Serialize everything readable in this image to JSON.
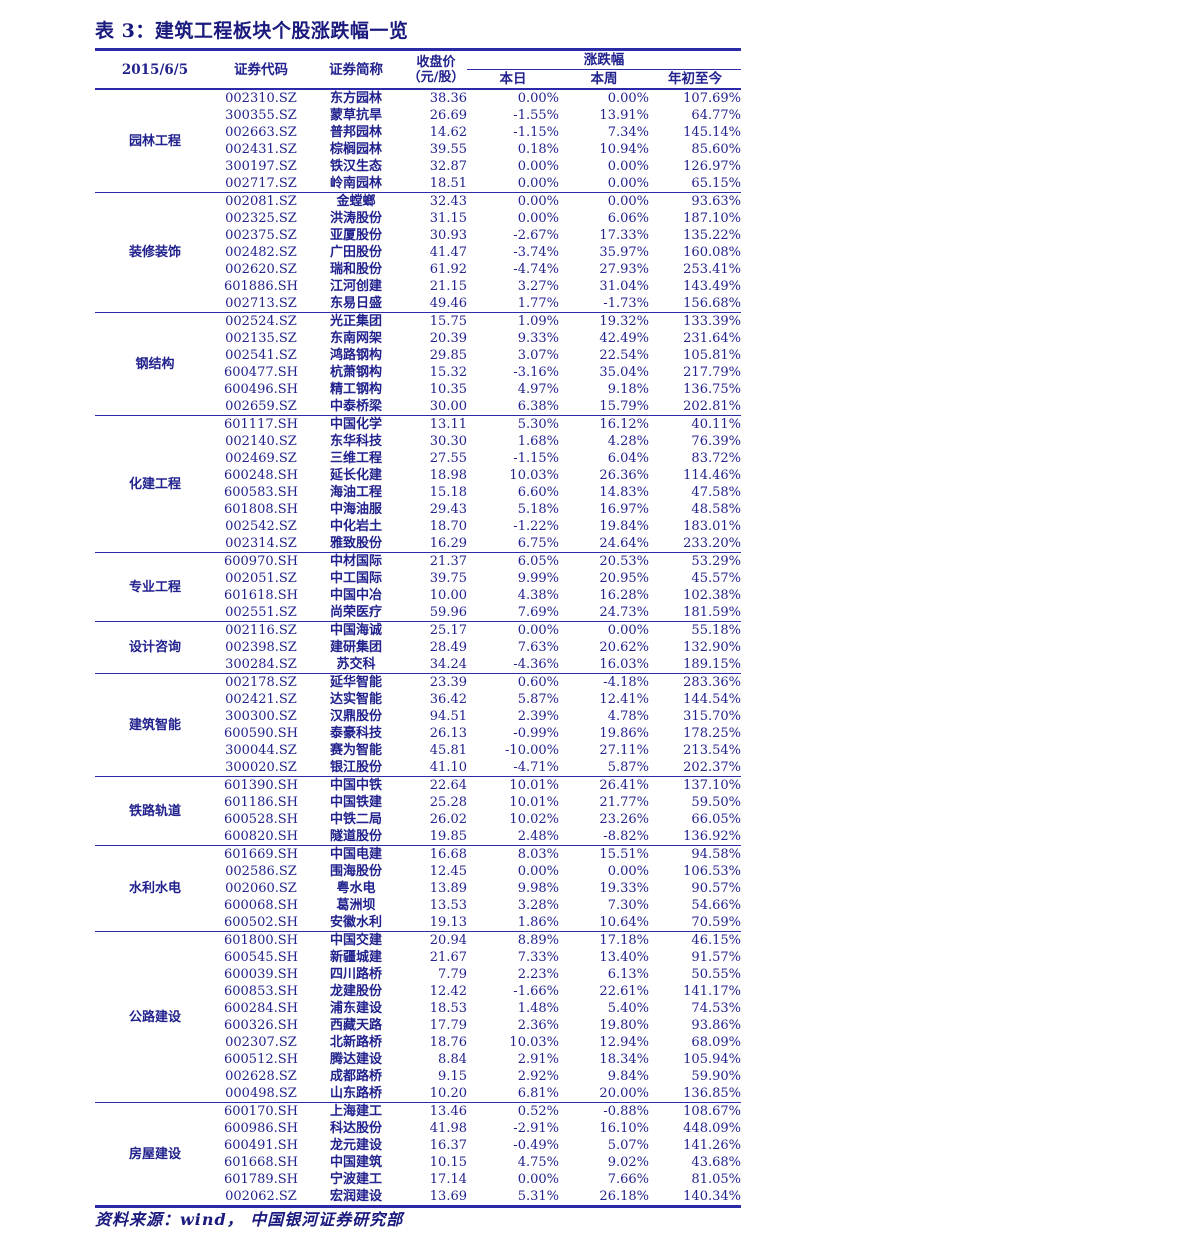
{
  "page": {
    "title": "表 3：建筑工程板块个股涨跌幅一览",
    "source_note": "资料来源：wind， 中国银河证券研究部"
  },
  "colors": {
    "ink": "#22228e",
    "title_ink": "#1a1a7e",
    "line": "#2b2baa",
    "background": "#ffffff"
  },
  "table": {
    "date_label": "2015/6/5",
    "headers": {
      "code": "证券代码",
      "name": "证券简称",
      "close": "收盘价（元/股）",
      "change": "涨跌幅",
      "today": "本日",
      "week": "本周",
      "ytd": "年初至今"
    },
    "groups": [
      {
        "category": "园林工程",
        "rows": [
          {
            "code": "002310.SZ",
            "name": "东方园林",
            "close": "38.36",
            "today": "0.00%",
            "week": "0.00%",
            "ytd": "107.69%"
          },
          {
            "code": "300355.SZ",
            "name": "蒙草抗旱",
            "close": "26.69",
            "today": "-1.55%",
            "week": "13.91%",
            "ytd": "64.77%"
          },
          {
            "code": "002663.SZ",
            "name": "普邦园林",
            "close": "14.62",
            "today": "-1.15%",
            "week": "7.34%",
            "ytd": "145.14%"
          },
          {
            "code": "002431.SZ",
            "name": "棕榈园林",
            "close": "39.55",
            "today": "0.18%",
            "week": "10.94%",
            "ytd": "85.60%"
          },
          {
            "code": "300197.SZ",
            "name": "铁汉生态",
            "close": "32.87",
            "today": "0.00%",
            "week": "0.00%",
            "ytd": "126.97%"
          },
          {
            "code": "002717.SZ",
            "name": "岭南园林",
            "close": "18.51",
            "today": "0.00%",
            "week": "0.00%",
            "ytd": "65.15%"
          }
        ]
      },
      {
        "category": "装修装饰",
        "rows": [
          {
            "code": "002081.SZ",
            "name": "金螳螂",
            "close": "32.43",
            "today": "0.00%",
            "week": "0.00%",
            "ytd": "93.63%"
          },
          {
            "code": "002325.SZ",
            "name": "洪涛股份",
            "close": "31.15",
            "today": "0.00%",
            "week": "6.06%",
            "ytd": "187.10%"
          },
          {
            "code": "002375.SZ",
            "name": "亚厦股份",
            "close": "30.93",
            "today": "-2.67%",
            "week": "17.33%",
            "ytd": "135.22%"
          },
          {
            "code": "002482.SZ",
            "name": "广田股份",
            "close": "41.47",
            "today": "-3.74%",
            "week": "35.97%",
            "ytd": "160.08%"
          },
          {
            "code": "002620.SZ",
            "name": "瑞和股份",
            "close": "61.92",
            "today": "-4.74%",
            "week": "27.93%",
            "ytd": "253.41%"
          },
          {
            "code": "601886.SH",
            "name": "江河创建",
            "close": "21.15",
            "today": "3.27%",
            "week": "31.04%",
            "ytd": "143.49%"
          },
          {
            "code": "002713.SZ",
            "name": "东易日盛",
            "close": "49.46",
            "today": "1.77%",
            "week": "-1.73%",
            "ytd": "156.68%"
          }
        ]
      },
      {
        "category": "钢结构",
        "rows": [
          {
            "code": "002524.SZ",
            "name": "光正集团",
            "close": "15.75",
            "today": "1.09%",
            "week": "19.32%",
            "ytd": "133.39%"
          },
          {
            "code": "002135.SZ",
            "name": "东南网架",
            "close": "20.39",
            "today": "9.33%",
            "week": "42.49%",
            "ytd": "231.64%"
          },
          {
            "code": "002541.SZ",
            "name": "鸿路钢构",
            "close": "29.85",
            "today": "3.07%",
            "week": "22.54%",
            "ytd": "105.81%"
          },
          {
            "code": "600477.SH",
            "name": "杭萧钢构",
            "close": "15.32",
            "today": "-3.16%",
            "week": "35.04%",
            "ytd": "217.79%"
          },
          {
            "code": "600496.SH",
            "name": "精工钢构",
            "close": "10.35",
            "today": "4.97%",
            "week": "9.18%",
            "ytd": "136.75%"
          },
          {
            "code": "002659.SZ",
            "name": "中泰桥梁",
            "close": "30.00",
            "today": "6.38%",
            "week": "15.79%",
            "ytd": "202.81%"
          }
        ]
      },
      {
        "category": "化建工程",
        "rows": [
          {
            "code": "601117.SH",
            "name": "中国化学",
            "close": "13.11",
            "today": "5.30%",
            "week": "16.12%",
            "ytd": "40.11%"
          },
          {
            "code": "002140.SZ",
            "name": "东华科技",
            "close": "30.30",
            "today": "1.68%",
            "week": "4.28%",
            "ytd": "76.39%"
          },
          {
            "code": "002469.SZ",
            "name": "三维工程",
            "close": "27.55",
            "today": "-1.15%",
            "week": "6.04%",
            "ytd": "83.72%"
          },
          {
            "code": "600248.SH",
            "name": "延长化建",
            "close": "18.98",
            "today": "10.03%",
            "week": "26.36%",
            "ytd": "114.46%"
          },
          {
            "code": "600583.SH",
            "name": "海油工程",
            "close": "15.18",
            "today": "6.60%",
            "week": "14.83%",
            "ytd": "47.58%"
          },
          {
            "code": "601808.SH",
            "name": "中海油服",
            "close": "29.43",
            "today": "5.18%",
            "week": "16.97%",
            "ytd": "48.58%"
          },
          {
            "code": "002542.SZ",
            "name": "中化岩土",
            "close": "18.70",
            "today": "-1.22%",
            "week": "19.84%",
            "ytd": "183.01%"
          },
          {
            "code": "002314.SZ",
            "name": "雅致股份",
            "close": "16.29",
            "today": "6.75%",
            "week": "24.64%",
            "ytd": "233.20%"
          }
        ]
      },
      {
        "category": "专业工程",
        "rows": [
          {
            "code": "600970.SH",
            "name": "中材国际",
            "close": "21.37",
            "today": "6.05%",
            "week": "20.53%",
            "ytd": "53.29%"
          },
          {
            "code": "002051.SZ",
            "name": "中工国际",
            "close": "39.75",
            "today": "9.99%",
            "week": "20.95%",
            "ytd": "45.57%"
          },
          {
            "code": "601618.SH",
            "name": "中国中冶",
            "close": "10.00",
            "today": "4.38%",
            "week": "16.28%",
            "ytd": "102.38%"
          },
          {
            "code": "002551.SZ",
            "name": "尚荣医疗",
            "close": "59.96",
            "today": "7.69%",
            "week": "24.73%",
            "ytd": "181.59%"
          }
        ]
      },
      {
        "category": "设计咨询",
        "rows": [
          {
            "code": "002116.SZ",
            "name": "中国海诚",
            "close": "25.17",
            "today": "0.00%",
            "week": "0.00%",
            "ytd": "55.18%"
          },
          {
            "code": "002398.SZ",
            "name": "建研集团",
            "close": "28.49",
            "today": "7.63%",
            "week": "20.62%",
            "ytd": "132.90%"
          },
          {
            "code": "300284.SZ",
            "name": "苏交科",
            "close": "34.24",
            "today": "-4.36%",
            "week": "16.03%",
            "ytd": "189.15%"
          }
        ]
      },
      {
        "category": "建筑智能",
        "rows": [
          {
            "code": "002178.SZ",
            "name": "延华智能",
            "close": "23.39",
            "today": "0.60%",
            "week": "-4.18%",
            "ytd": "283.36%"
          },
          {
            "code": "002421.SZ",
            "name": "达实智能",
            "close": "36.42",
            "today": "5.87%",
            "week": "12.41%",
            "ytd": "144.54%"
          },
          {
            "code": "300300.SZ",
            "name": "汉鼎股份",
            "close": "94.51",
            "today": "2.39%",
            "week": "4.78%",
            "ytd": "315.70%"
          },
          {
            "code": "600590.SH",
            "name": "泰豪科技",
            "close": "26.13",
            "today": "-0.99%",
            "week": "19.86%",
            "ytd": "178.25%"
          },
          {
            "code": "300044.SZ",
            "name": "赛为智能",
            "close": "45.81",
            "today": "-10.00%",
            "week": "27.11%",
            "ytd": "213.54%"
          },
          {
            "code": "300020.SZ",
            "name": "银江股份",
            "close": "41.10",
            "today": "-4.71%",
            "week": "5.87%",
            "ytd": "202.37%"
          }
        ]
      },
      {
        "category": "铁路轨道",
        "rows": [
          {
            "code": "601390.SH",
            "name": "中国中铁",
            "close": "22.64",
            "today": "10.01%",
            "week": "26.41%",
            "ytd": "137.10%"
          },
          {
            "code": "601186.SH",
            "name": "中国铁建",
            "close": "25.28",
            "today": "10.01%",
            "week": "21.77%",
            "ytd": "59.50%"
          },
          {
            "code": "600528.SH",
            "name": "中铁二局",
            "close": "26.02",
            "today": "10.02%",
            "week": "23.26%",
            "ytd": "66.05%"
          },
          {
            "code": "600820.SH",
            "name": "隧道股份",
            "close": "19.85",
            "today": "2.48%",
            "week": "-8.82%",
            "ytd": "136.92%"
          }
        ]
      },
      {
        "category": "水利水电",
        "rows": [
          {
            "code": "601669.SH",
            "name": "中国电建",
            "close": "16.68",
            "today": "8.03%",
            "week": "15.51%",
            "ytd": "94.58%"
          },
          {
            "code": "002586.SZ",
            "name": "围海股份",
            "close": "12.45",
            "today": "0.00%",
            "week": "0.00%",
            "ytd": "106.53%"
          },
          {
            "code": "002060.SZ",
            "name": "粤水电",
            "close": "13.89",
            "today": "9.98%",
            "week": "19.33%",
            "ytd": "90.57%"
          },
          {
            "code": "600068.SH",
            "name": "葛洲坝",
            "close": "13.53",
            "today": "3.28%",
            "week": "7.30%",
            "ytd": "54.66%"
          },
          {
            "code": "600502.SH",
            "name": "安徽水利",
            "close": "19.13",
            "today": "1.86%",
            "week": "10.64%",
            "ytd": "70.59%"
          }
        ]
      },
      {
        "category": "公路建设",
        "rows": [
          {
            "code": "601800.SH",
            "name": "中国交建",
            "close": "20.94",
            "today": "8.89%",
            "week": "17.18%",
            "ytd": "46.15%"
          },
          {
            "code": "600545.SH",
            "name": "新疆城建",
            "close": "21.67",
            "today": "7.33%",
            "week": "13.40%",
            "ytd": "91.57%"
          },
          {
            "code": "600039.SH",
            "name": "四川路桥",
            "close": "7.79",
            "today": "2.23%",
            "week": "6.13%",
            "ytd": "50.55%"
          },
          {
            "code": "600853.SH",
            "name": "龙建股份",
            "close": "12.42",
            "today": "-1.66%",
            "week": "22.61%",
            "ytd": "141.17%"
          },
          {
            "code": "600284.SH",
            "name": "浦东建设",
            "close": "18.53",
            "today": "1.48%",
            "week": "5.40%",
            "ytd": "74.53%"
          },
          {
            "code": "600326.SH",
            "name": "西藏天路",
            "close": "17.79",
            "today": "2.36%",
            "week": "19.80%",
            "ytd": "93.86%"
          },
          {
            "code": "002307.SZ",
            "name": "北新路桥",
            "close": "18.76",
            "today": "10.03%",
            "week": "12.94%",
            "ytd": "68.09%"
          },
          {
            "code": "600512.SH",
            "name": "腾达建设",
            "close": "8.84",
            "today": "2.91%",
            "week": "18.34%",
            "ytd": "105.94%"
          },
          {
            "code": "002628.SZ",
            "name": "成都路桥",
            "close": "9.15",
            "today": "2.92%",
            "week": "9.84%",
            "ytd": "59.90%"
          },
          {
            "code": "000498.SZ",
            "name": "山东路桥",
            "close": "10.20",
            "today": "6.81%",
            "week": "20.00%",
            "ytd": "136.85%"
          }
        ]
      },
      {
        "category": "房屋建设",
        "rows": [
          {
            "code": "600170.SH",
            "name": "上海建工",
            "close": "13.46",
            "today": "0.52%",
            "week": "-0.88%",
            "ytd": "108.67%"
          },
          {
            "code": "600986.SH",
            "name": "科达股份",
            "close": "41.98",
            "today": "-2.91%",
            "week": "16.10%",
            "ytd": "448.09%"
          },
          {
            "code": "600491.SH",
            "name": "龙元建设",
            "close": "16.37",
            "today": "-0.49%",
            "week": "5.07%",
            "ytd": "141.26%"
          },
          {
            "code": "601668.SH",
            "name": "中国建筑",
            "close": "10.15",
            "today": "4.75%",
            "week": "9.02%",
            "ytd": "43.68%"
          },
          {
            "code": "601789.SH",
            "name": "宁波建工",
            "close": "17.14",
            "today": "0.00%",
            "week": "7.66%",
            "ytd": "81.05%"
          },
          {
            "code": "002062.SZ",
            "name": "宏润建设",
            "close": "13.69",
            "today": "5.31%",
            "week": "26.18%",
            "ytd": "140.34%"
          }
        ]
      }
    ]
  }
}
